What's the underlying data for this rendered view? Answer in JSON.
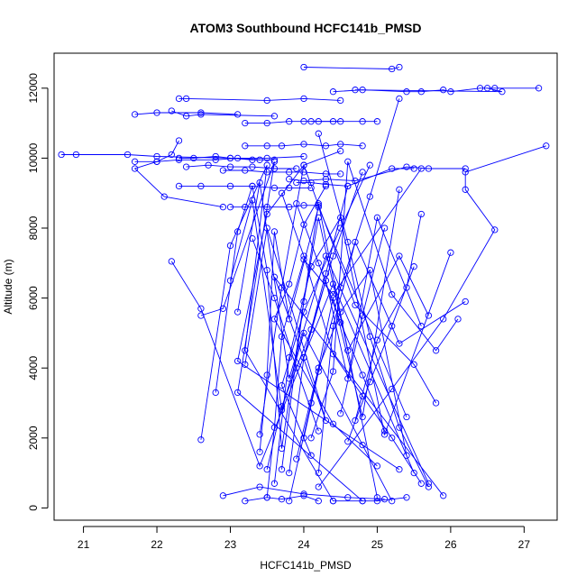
{
  "chart_data": {
    "type": "scatter",
    "title": "ATOM3 Southbound HCFC141b_PMSD",
    "xlabel": "HCFC141b_PMSD",
    "ylabel": "Altitude (m)",
    "xlim": [
      20.6,
      27.45
    ],
    "ylim": [
      -350,
      13000
    ],
    "xticks": [
      21,
      22,
      23,
      24,
      25,
      26,
      27
    ],
    "yticks": [
      0,
      2000,
      4000,
      6000,
      8000,
      10000,
      12000
    ],
    "grid": false,
    "legend": "none",
    "color": "#0000ff",
    "marker": "open-circle",
    "connected": true,
    "profiles": [
      {
        "x": [
          24.0,
          25.2,
          25.3
        ],
        "y": [
          12600,
          12550,
          12600
        ]
      },
      {
        "x": [
          24.4,
          24.8,
          25.4,
          25.6,
          25.9,
          26.0,
          26.4,
          26.6,
          27.2
        ],
        "y": [
          11900,
          11950,
          11900,
          11900,
          11950,
          11900,
          12000,
          12000,
          12000
        ]
      },
      {
        "x": [
          26.5,
          26.7,
          24.7
        ],
        "y": [
          12000,
          11900,
          11950
        ]
      },
      {
        "x": [
          22.3,
          22.4,
          23.5,
          24.0,
          24.5
        ],
        "y": [
          11700,
          11700,
          11650,
          11700,
          11650
        ]
      },
      {
        "x": [
          21.7,
          22.0,
          22.6,
          23.1
        ],
        "y": [
          11250,
          11300,
          11300,
          11250
        ]
      },
      {
        "x": [
          22.2,
          22.4,
          22.6,
          23.6
        ],
        "y": [
          11350,
          11200,
          11250,
          11200
        ]
      },
      {
        "x": [
          23.2,
          23.5,
          23.8,
          24.0,
          24.2,
          24.5
        ],
        "y": [
          11000,
          11000,
          11050,
          11050,
          11050,
          11050
        ]
      },
      {
        "x": [
          24.1,
          24.4,
          24.8,
          25.0
        ],
        "y": [
          11050,
          11050,
          11050,
          11050
        ]
      },
      {
        "x": [
          20.7,
          20.9,
          21.6,
          22.0,
          23.0,
          23.5,
          24.0
        ],
        "y": [
          10100,
          10100,
          10100,
          10050,
          10000,
          10000,
          10050
        ]
      },
      {
        "x": [
          21.7,
          22.0,
          22.3,
          22.8,
          23.1,
          23.4
        ],
        "y": [
          9900,
          9900,
          9950,
          9950,
          10000,
          9950
        ]
      },
      {
        "x": [
          23.2,
          23.5,
          23.7,
          24.0,
          24.3,
          24.5,
          24.8
        ],
        "y": [
          10350,
          10350,
          10350,
          10400,
          10350,
          10400,
          10350
        ]
      },
      {
        "x": [
          22.3,
          22.5,
          22.8,
          23.0,
          23.3,
          23.6
        ],
        "y": [
          10000,
          10000,
          10050,
          10000,
          9950,
          9950
        ]
      },
      {
        "x": [
          22.4,
          22.7,
          23.0,
          23.3,
          23.6,
          23.9
        ],
        "y": [
          9750,
          9800,
          9750,
          9750,
          9700,
          9700
        ]
      },
      {
        "x": [
          22.9,
          23.2,
          23.5,
          23.8,
          24.0,
          24.3,
          24.5
        ],
        "y": [
          9650,
          9650,
          9600,
          9600,
          9600,
          9550,
          9550
        ]
      },
      {
        "x": [
          22.3,
          22.6,
          23.0,
          23.3,
          23.6,
          23.8,
          24.1
        ],
        "y": [
          9200,
          9200,
          9200,
          9200,
          9150,
          9150,
          9150
        ]
      },
      {
        "x": [
          23.0,
          23.2,
          23.5,
          23.8,
          24.0,
          24.2
        ],
        "y": [
          8600,
          8600,
          8600,
          8600,
          8650,
          8650
        ]
      },
      {
        "x": [
          23.8,
          24.0,
          24.3,
          24.7,
          25.4,
          25.7,
          26.2
        ],
        "y": [
          9400,
          9350,
          9400,
          9350,
          9750,
          9700,
          9700
        ]
      },
      {
        "x": [
          23.9,
          24.1,
          24.3,
          24.6,
          25.2,
          25.5
        ],
        "y": [
          9300,
          9300,
          9250,
          9200,
          9700,
          9700
        ]
      },
      {
        "x": [
          22.3,
          22.2,
          22.0,
          21.7,
          22.1,
          22.9
        ],
        "y": [
          10500,
          10100,
          9900,
          9700,
          8900,
          8600
        ]
      },
      {
        "x": [
          27.3,
          26.2,
          26.2,
          26.6,
          25.9,
          25.2,
          24.2
        ],
        "y": [
          10350,
          9600,
          9100,
          7950,
          5400,
          3400,
          600
        ]
      },
      {
        "x": [
          22.2,
          22.6,
          23.4,
          24.4,
          25.5
        ],
        "y": [
          7050,
          5700,
          1200,
          6400,
          1000
        ]
      },
      {
        "x": [
          22.6,
          22.9,
          23.6,
          23.1,
          24.8
        ],
        "y": [
          5500,
          5700,
          9900,
          3300,
          200
        ]
      },
      {
        "x": [
          22.6,
          23.0,
          23.5,
          23.2,
          24.4
        ],
        "y": [
          1950,
          7500,
          9800,
          4500,
          200
        ]
      },
      {
        "x": [
          22.8,
          23.1,
          23.3,
          23.5,
          23.7,
          24.2,
          25.0
        ],
        "y": [
          3300,
          7900,
          9200,
          6800,
          1700,
          8700,
          300
        ]
      },
      {
        "x": [
          23.0,
          23.3,
          23.7,
          24.0,
          25.2
        ],
        "y": [
          6500,
          8800,
          2800,
          5000,
          200
        ]
      },
      {
        "x": [
          23.1,
          23.4,
          23.8,
          24.3,
          25.7
        ],
        "y": [
          5600,
          9300,
          3700,
          7200,
          700
        ]
      },
      {
        "x": [
          23.2,
          23.5,
          24.3,
          23.6,
          25.9
        ],
        "y": [
          4100,
          8000,
          2500,
          6600,
          350
        ]
      },
      {
        "x": [
          23.4,
          23.7,
          24.0,
          24.7,
          25.5,
          25.8
        ],
        "y": [
          2100,
          6300,
          9800,
          5800,
          4100,
          3000
        ]
      },
      {
        "x": [
          23.4,
          23.5,
          23.6,
          23.8,
          24.2,
          25.4
        ],
        "y": [
          1600,
          3800,
          7900,
          5400,
          8600,
          2600
        ]
      },
      {
        "x": [
          23.5,
          23.6,
          23.7,
          24.0,
          24.4,
          25.6
        ],
        "y": [
          300,
          2300,
          4900,
          7100,
          6100,
          9700
        ]
      },
      {
        "x": [
          23.6,
          23.8,
          24.1,
          24.5,
          25.1,
          26.0
        ],
        "y": [
          700,
          4300,
          6900,
          8300,
          2100,
          7300
        ]
      },
      {
        "x": [
          23.7,
          24.0,
          24.2,
          24.6,
          25.3,
          25.7
        ],
        "y": [
          1100,
          5900,
          8300,
          4500,
          7200,
          5500
        ]
      },
      {
        "x": [
          23.8,
          24.1,
          24.4,
          24.8,
          25.3
        ],
        "y": [
          200,
          3000,
          6000,
          2600,
          9100
        ]
      },
      {
        "x": [
          23.9,
          24.2,
          24.5,
          24.9,
          25.4
        ],
        "y": [
          1400,
          4000,
          5600,
          6800,
          1500
        ]
      },
      {
        "x": [
          24.0,
          24.3,
          24.6,
          25.0,
          25.6
        ],
        "y": [
          4300,
          6500,
          3700,
          8300,
          5200
        ]
      },
      {
        "x": [
          24.1,
          24.4,
          24.6,
          25.2,
          25.8,
          26.1
        ],
        "y": [
          2000,
          3900,
          9900,
          6100,
          4500,
          5400
        ]
      },
      {
        "x": [
          24.2,
          24.4,
          24.7,
          25.3,
          26.2
        ],
        "y": [
          1000,
          5200,
          7600,
          4700,
          5900
        ]
      },
      {
        "x": [
          22.9,
          23.4,
          24.0,
          24.6,
          25.1
        ],
        "y": [
          350,
          600,
          400,
          300,
          250
        ]
      },
      {
        "x": [
          23.2,
          23.5,
          23.7,
          24.0,
          24.2
        ],
        "y": [
          200,
          300,
          250,
          350,
          200
        ]
      },
      {
        "x": [
          24.4,
          24.8,
          25.0,
          25.4
        ],
        "y": [
          200,
          200,
          200,
          300
        ]
      },
      {
        "x": [
          23.7,
          24.0,
          24.4,
          24.8,
          25.2,
          25.6
        ],
        "y": [
          9000,
          7200,
          4400,
          3200,
          2000,
          700
        ]
      },
      {
        "x": [
          24.5,
          24.0,
          23.5,
          23.1,
          24.8,
          25.3
        ],
        "y": [
          10200,
          9800,
          8400,
          4200,
          1800,
          1100
        ]
      },
      {
        "x": [
          24.3,
          24.0,
          23.8,
          23.6,
          24.4,
          25.0
        ],
        "y": [
          9200,
          8100,
          6400,
          5400,
          2400,
          1200
        ]
      },
      {
        "x": [
          24.9,
          24.5,
          24.0,
          23.7,
          24.1
        ],
        "y": [
          9800,
          8000,
          5600,
          3500,
          1500
        ]
      },
      {
        "x": [
          24.2,
          24.6,
          24.9,
          25.3,
          25.7
        ],
        "y": [
          10700,
          7600,
          4900,
          2300,
          600
        ]
      },
      {
        "x": [
          24.6,
          24.3,
          24.0,
          23.8
        ],
        "y": [
          9200,
          6700,
          4300,
          1000
        ]
      },
      {
        "x": [
          25.3,
          24.9,
          24.5,
          24.2,
          24.0
        ],
        "y": [
          11700,
          8900,
          6300,
          3900,
          2000
        ]
      },
      {
        "x": [
          24.8,
          24.4,
          24.1,
          23.7,
          23.5
        ],
        "y": [
          9600,
          7200,
          5100,
          2900,
          1100
        ]
      },
      {
        "x": [
          23.9,
          24.2,
          24.5,
          24.8,
          25.1
        ],
        "y": [
          8700,
          7000,
          5300,
          3800,
          2200
        ]
      },
      {
        "x": [
          25.6,
          25.4,
          25.0,
          24.7
        ],
        "y": [
          8400,
          6300,
          4800,
          2500
        ]
      },
      {
        "x": [
          25.5,
          25.2,
          24.9,
          24.6
        ],
        "y": [
          6900,
          5200,
          3600,
          1900
        ]
      },
      {
        "x": [
          25.1,
          24.8,
          24.5
        ],
        "y": [
          8000,
          5500,
          2700
        ]
      },
      {
        "x": [
          23.3,
          23.6,
          23.9,
          24.2
        ],
        "y": [
          7700,
          6000,
          4000,
          2200
        ]
      }
    ]
  }
}
